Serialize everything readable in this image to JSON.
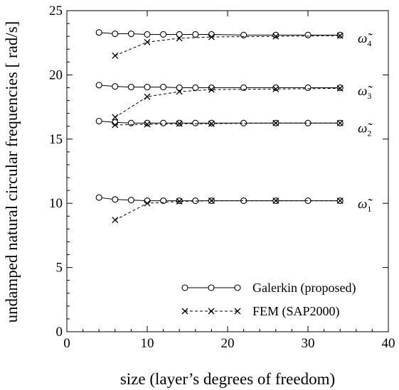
{
  "chart_data": {
    "type": "line",
    "xlabel": "size (layer’s degrees of freedom)",
    "ylabel": "undamped natural circular frequencies [ rad/s]",
    "xlim": [
      0,
      40
    ],
    "ylim": [
      0,
      25
    ],
    "xticks": [
      0,
      10,
      20,
      30,
      40
    ],
    "yticks": [
      0,
      5,
      10,
      15,
      20,
      25
    ],
    "legend": {
      "placement": "bottom-right",
      "entries": [
        {
          "label": "Galerkin (proposed)",
          "marker": "circle",
          "line": "solid"
        },
        {
          "label": "FEM (SAP2000)",
          "marker": "x",
          "line": "dashed"
        }
      ]
    },
    "series_labels": [
      {
        "mode": "1",
        "text": "ω̃",
        "sub": "1"
      },
      {
        "mode": "2",
        "text": "ω̃",
        "sub": "2"
      },
      {
        "mode": "3",
        "text": "ω̃",
        "sub": "3"
      },
      {
        "mode": "4",
        "text": "ω̃",
        "sub": "4"
      }
    ],
    "series": [
      {
        "method": "Galerkin (proposed)",
        "mode": "4",
        "x": [
          4,
          6,
          8,
          10,
          12,
          14,
          16,
          18,
          22,
          26,
          30,
          34
        ],
        "y": [
          23.3,
          23.2,
          23.2,
          23.15,
          23.15,
          23.15,
          23.15,
          23.15,
          23.1,
          23.1,
          23.1,
          23.1
        ]
      },
      {
        "method": "Galerkin (proposed)",
        "mode": "3",
        "x": [
          4,
          6,
          8,
          10,
          12,
          14,
          16,
          18,
          22,
          26,
          30,
          34
        ],
        "y": [
          19.2,
          19.1,
          19.05,
          19.05,
          19.05,
          19.0,
          19.0,
          19.0,
          19.0,
          19.0,
          19.0,
          19.0
        ]
      },
      {
        "method": "Galerkin (proposed)",
        "mode": "2",
        "x": [
          4,
          6,
          8,
          10,
          12,
          14,
          16,
          18,
          22,
          26,
          30,
          34
        ],
        "y": [
          16.4,
          16.3,
          16.25,
          16.25,
          16.25,
          16.25,
          16.25,
          16.25,
          16.25,
          16.25,
          16.25,
          16.25
        ]
      },
      {
        "method": "Galerkin (proposed)",
        "mode": "1",
        "x": [
          4,
          6,
          8,
          10,
          12,
          14,
          16,
          18,
          22,
          26,
          30,
          34
        ],
        "y": [
          10.45,
          10.3,
          10.25,
          10.2,
          10.2,
          10.2,
          10.2,
          10.2,
          10.2,
          10.2,
          10.2,
          10.2
        ]
      },
      {
        "method": "FEM (SAP2000)",
        "mode": "4",
        "x": [
          6,
          10,
          14,
          18,
          26,
          34
        ],
        "y": [
          21.5,
          22.55,
          22.85,
          22.95,
          23.0,
          23.05
        ]
      },
      {
        "method": "FEM (SAP2000)",
        "mode": "3",
        "x": [
          6,
          10,
          14,
          18,
          26,
          34
        ],
        "y": [
          16.7,
          18.3,
          18.7,
          18.85,
          18.9,
          18.95
        ]
      },
      {
        "method": "FEM (SAP2000)",
        "mode": "2",
        "x": [
          6,
          10,
          14,
          18,
          26,
          34
        ],
        "y": [
          16.1,
          16.15,
          16.2,
          16.2,
          16.25,
          16.25
        ]
      },
      {
        "method": "FEM (SAP2000)",
        "mode": "1",
        "x": [
          6,
          10,
          14,
          18,
          26,
          34
        ],
        "y": [
          8.7,
          10.0,
          10.15,
          10.2,
          10.2,
          10.2
        ]
      }
    ]
  }
}
